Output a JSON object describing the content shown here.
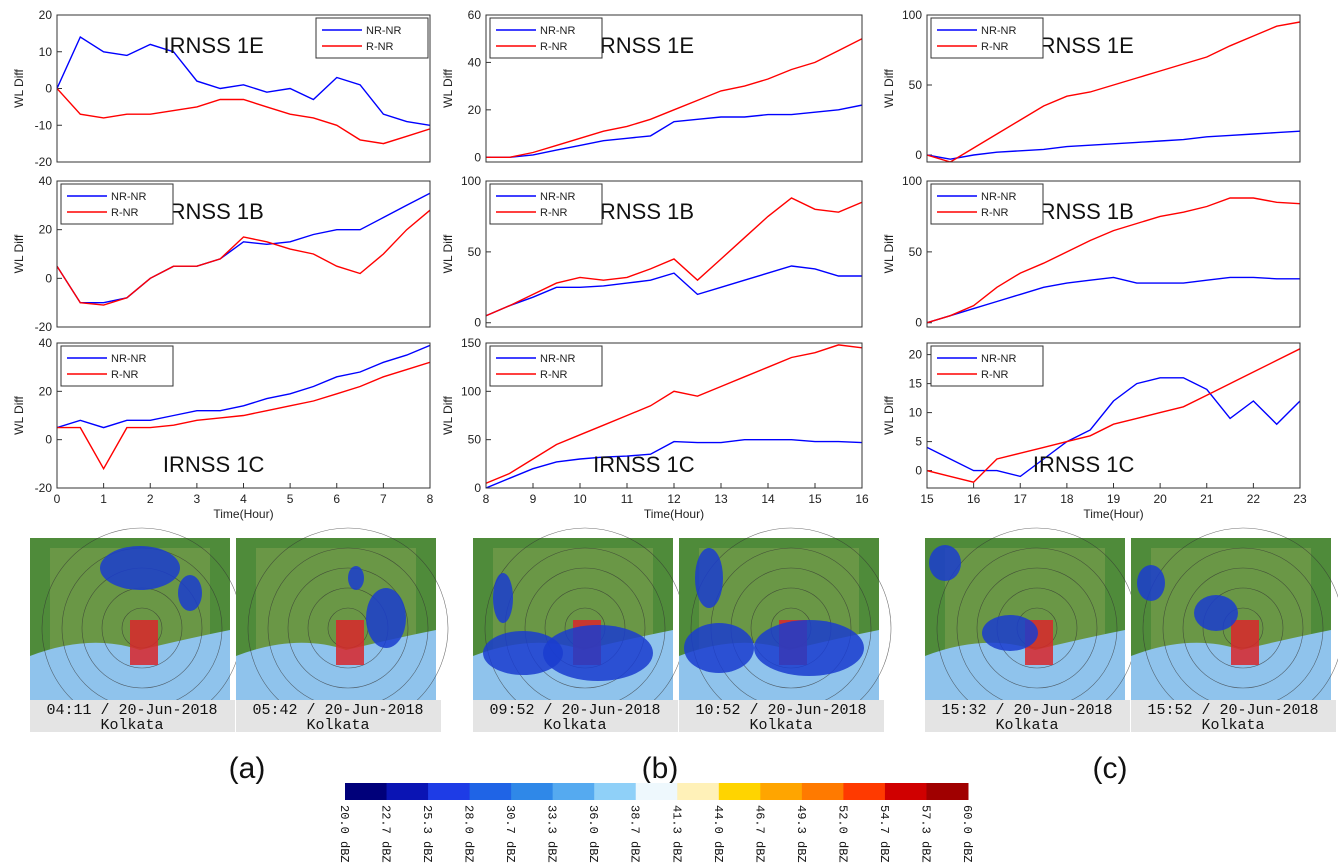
{
  "chart_data": [
    {
      "type": "line",
      "title": "IRNSS 1E",
      "ylabel": "WL Diff",
      "legend": "upper right",
      "x": [
        0,
        0.5,
        1,
        1.5,
        2,
        2.5,
        3,
        3.5,
        4,
        4.5,
        5,
        5.5,
        6,
        6.5,
        7,
        7.5,
        8
      ],
      "xlim": [
        0,
        8
      ],
      "ylim": [
        -20,
        20
      ],
      "yticks": [
        -20,
        -10,
        0,
        10,
        20
      ],
      "series": [
        {
          "name": "NR-NR",
          "color": "#0000ff",
          "values": [
            0,
            14,
            10,
            9,
            12,
            10,
            2,
            0,
            1,
            -1,
            0,
            -3,
            3,
            1,
            -7,
            -9,
            -10
          ]
        },
        {
          "name": "R-NR",
          "color": "#ff0000",
          "values": [
            0,
            -7,
            -8,
            -7,
            -7,
            -6,
            -5,
            -3,
            -3,
            -5,
            -7,
            -8,
            -10,
            -14,
            -15,
            -13,
            -11
          ]
        }
      ]
    },
    {
      "type": "line",
      "title": "IRNSS 1E",
      "ylabel": "WL Diff",
      "legend": "upper left",
      "x": [
        8,
        8.5,
        9,
        9.5,
        10,
        10.5,
        11,
        11.5,
        12,
        12.5,
        13,
        13.5,
        14,
        14.5,
        15,
        15.5,
        16
      ],
      "xlim": [
        8,
        16
      ],
      "ylim": [
        -2,
        60
      ],
      "yticks": [
        0,
        20,
        40,
        60
      ],
      "series": [
        {
          "name": "NR-NR",
          "color": "#0000ff",
          "values": [
            0,
            0,
            1,
            3,
            5,
            7,
            8,
            9,
            15,
            16,
            17,
            17,
            18,
            18,
            19,
            20,
            22
          ]
        },
        {
          "name": "R-NR",
          "color": "#ff0000",
          "values": [
            0,
            0,
            2,
            5,
            8,
            11,
            13,
            16,
            20,
            24,
            28,
            30,
            33,
            37,
            40,
            45,
            50
          ]
        }
      ]
    },
    {
      "type": "line",
      "title": "IRNSS 1E",
      "ylabel": "WL Diff",
      "legend": "upper left",
      "x": [
        15,
        15.5,
        16,
        16.5,
        17,
        17.5,
        18,
        18.5,
        19,
        19.5,
        20,
        20.5,
        21,
        21.5,
        22,
        22.5,
        23
      ],
      "xlim": [
        15,
        23
      ],
      "ylim": [
        -5,
        100
      ],
      "yticks": [
        0,
        50,
        100
      ],
      "series": [
        {
          "name": "NR-NR",
          "color": "#0000ff",
          "values": [
            0,
            -3,
            0,
            2,
            3,
            4,
            6,
            7,
            8,
            9,
            10,
            11,
            13,
            14,
            15,
            16,
            17
          ]
        },
        {
          "name": "R-NR",
          "color": "#ff0000",
          "values": [
            0,
            -5,
            5,
            15,
            25,
            35,
            42,
            45,
            50,
            55,
            60,
            65,
            70,
            78,
            85,
            92,
            95
          ]
        }
      ]
    },
    {
      "type": "line",
      "title": "IRNSS 1B",
      "ylabel": "WL Diff",
      "legend": "upper left",
      "x": [
        0,
        0.5,
        1,
        1.5,
        2,
        2.5,
        3,
        3.5,
        4,
        4.5,
        5,
        5.5,
        6,
        6.5,
        7,
        7.5,
        8
      ],
      "xlim": [
        0,
        8
      ],
      "ylim": [
        -20,
        40
      ],
      "yticks": [
        -20,
        0,
        20,
        40
      ],
      "series": [
        {
          "name": "NR-NR",
          "color": "#0000ff",
          "values": [
            5,
            -10,
            -10,
            -8,
            0,
            5,
            5,
            8,
            15,
            14,
            15,
            18,
            20,
            20,
            25,
            30,
            35
          ]
        },
        {
          "name": "R-NR",
          "color": "#ff0000",
          "values": [
            5,
            -10,
            -11,
            -8,
            0,
            5,
            5,
            8,
            17,
            15,
            12,
            10,
            5,
            2,
            10,
            20,
            28
          ]
        }
      ]
    },
    {
      "type": "line",
      "title": "IRNSS 1B",
      "ylabel": "WL Diff",
      "legend": "upper left",
      "x": [
        8,
        8.5,
        9,
        9.5,
        10,
        10.5,
        11,
        11.5,
        12,
        12.5,
        13,
        13.5,
        14,
        14.5,
        15,
        15.5,
        16
      ],
      "xlim": [
        8,
        16
      ],
      "ylim": [
        -3,
        100
      ],
      "yticks": [
        0,
        50,
        100
      ],
      "series": [
        {
          "name": "NR-NR",
          "color": "#0000ff",
          "values": [
            5,
            12,
            18,
            25,
            25,
            26,
            28,
            30,
            35,
            20,
            25,
            30,
            35,
            40,
            38,
            33,
            33
          ]
        },
        {
          "name": "R-NR",
          "color": "#ff0000",
          "values": [
            5,
            12,
            20,
            28,
            32,
            30,
            32,
            38,
            45,
            30,
            45,
            60,
            75,
            88,
            80,
            78,
            85
          ]
        }
      ]
    },
    {
      "type": "line",
      "title": "IRNSS 1B",
      "ylabel": "WL Diff",
      "legend": "upper left",
      "x": [
        15,
        15.5,
        16,
        16.5,
        17,
        17.5,
        18,
        18.5,
        19,
        19.5,
        20,
        20.5,
        21,
        21.5,
        22,
        22.5,
        23
      ],
      "xlim": [
        15,
        23
      ],
      "ylim": [
        -3,
        100
      ],
      "yticks": [
        0,
        50,
        100
      ],
      "series": [
        {
          "name": "NR-NR",
          "color": "#0000ff",
          "values": [
            0,
            5,
            10,
            15,
            20,
            25,
            28,
            30,
            32,
            28,
            28,
            28,
            30,
            32,
            32,
            31,
            31
          ]
        },
        {
          "name": "R-NR",
          "color": "#ff0000",
          "values": [
            0,
            5,
            12,
            25,
            35,
            42,
            50,
            58,
            65,
            70,
            75,
            78,
            82,
            88,
            88,
            85,
            84
          ]
        }
      ]
    },
    {
      "type": "line",
      "title": "IRNSS 1C",
      "ylabel": "WL Diff",
      "xlabel": "Time(Hour)",
      "legend": "upper left",
      "x": [
        0,
        0.5,
        1,
        1.5,
        2,
        2.5,
        3,
        3.5,
        4,
        4.5,
        5,
        5.5,
        6,
        6.5,
        7,
        7.5,
        8
      ],
      "xlim": [
        0,
        8
      ],
      "xticks": [
        0,
        1,
        2,
        3,
        4,
        5,
        6,
        7,
        8
      ],
      "ylim": [
        -20,
        40
      ],
      "yticks": [
        -20,
        0,
        20,
        40
      ],
      "series": [
        {
          "name": "NR-NR",
          "color": "#0000ff",
          "values": [
            5,
            8,
            5,
            8,
            8,
            10,
            12,
            12,
            14,
            17,
            19,
            22,
            26,
            28,
            32,
            35,
            39
          ]
        },
        {
          "name": "R-NR",
          "color": "#ff0000",
          "values": [
            5,
            5,
            -12,
            5,
            5,
            6,
            8,
            9,
            10,
            12,
            14,
            16,
            19,
            22,
            26,
            29,
            32
          ]
        }
      ]
    },
    {
      "type": "line",
      "title": "IRNSS 1C",
      "ylabel": "WL Diff",
      "xlabel": "Time(Hour)",
      "legend": "upper left",
      "x": [
        8,
        8.5,
        9,
        9.5,
        10,
        10.5,
        11,
        11.5,
        12,
        12.5,
        13,
        13.5,
        14,
        14.5,
        15,
        15.5,
        16
      ],
      "xlim": [
        8,
        16
      ],
      "xticks": [
        8,
        9,
        10,
        11,
        12,
        13,
        14,
        15,
        16
      ],
      "ylim": [
        0,
        150
      ],
      "yticks": [
        0,
        50,
        100,
        150
      ],
      "series": [
        {
          "name": "NR-NR",
          "color": "#0000ff",
          "values": [
            0,
            10,
            20,
            27,
            30,
            32,
            33,
            35,
            48,
            47,
            47,
            50,
            50,
            50,
            48,
            48,
            47
          ]
        },
        {
          "name": "R-NR",
          "color": "#ff0000",
          "values": [
            5,
            15,
            30,
            45,
            55,
            65,
            75,
            85,
            100,
            95,
            105,
            115,
            125,
            135,
            140,
            148,
            145
          ]
        }
      ]
    },
    {
      "type": "line",
      "title": "IRNSS 1C",
      "ylabel": "WL Diff",
      "xlabel": "Time(Hour)",
      "legend": "upper left",
      "x": [
        15,
        15.5,
        16,
        16.5,
        17,
        17.5,
        18,
        18.5,
        19,
        19.5,
        20,
        20.5,
        21,
        21.5,
        22,
        22.5,
        23
      ],
      "xlim": [
        15,
        23
      ],
      "xticks": [
        15,
        16,
        17,
        18,
        19,
        20,
        21,
        22,
        23
      ],
      "ylim": [
        -3,
        22
      ],
      "yticks": [
        0,
        5,
        10,
        15,
        20
      ],
      "series": [
        {
          "name": "NR-NR",
          "color": "#0000ff",
          "values": [
            4,
            2,
            0,
            0,
            -1,
            2,
            5,
            7,
            12,
            15,
            16,
            16,
            14,
            9,
            12,
            8,
            12
          ]
        },
        {
          "name": "R-NR",
          "color": "#ff0000",
          "values": [
            0,
            -1,
            -2,
            2,
            3,
            4,
            5,
            6,
            8,
            9,
            10,
            11,
            13,
            15,
            17,
            19,
            21
          ]
        }
      ]
    }
  ],
  "radar_panels": [
    {
      "time": "04:11 / 20-Jun-2018",
      "place": "Kolkata"
    },
    {
      "time": "05:42 / 20-Jun-2018",
      "place": "Kolkata"
    },
    {
      "time": "09:52 / 20-Jun-2018",
      "place": "Kolkata"
    },
    {
      "time": "10:52 / 20-Jun-2018",
      "place": "Kolkata"
    },
    {
      "time": "15:32 / 20-Jun-2018",
      "place": "Kolkata"
    },
    {
      "time": "15:52 / 20-Jun-2018",
      "place": "Kolkata"
    }
  ],
  "panel_labels": [
    "(a)",
    "(b)",
    "(c)"
  ],
  "colorbar": {
    "labels": [
      "20.0 dBZ",
      "22.7 dBZ",
      "25.3 dBZ",
      "28.0 dBZ",
      "30.7 dBZ",
      "33.3 dBZ",
      "36.0 dBZ",
      "38.7 dBZ",
      "41.3 dBZ",
      "44.0 dBZ",
      "46.7 dBZ",
      "49.3 dBZ",
      "52.0 dBZ",
      "54.7 dBZ",
      "57.3 dBZ",
      "60.0 dBZ"
    ],
    "colors": [
      "#00007a",
      "#0a14b4",
      "#1e3ce6",
      "#1f64e6",
      "#2f88e8",
      "#55aaf0",
      "#8fd0f8",
      "#eef8fd",
      "#fff1b8",
      "#ffd400",
      "#ffa500",
      "#ff7a00",
      "#ff3a00",
      "#d00000",
      "#a00000"
    ]
  }
}
